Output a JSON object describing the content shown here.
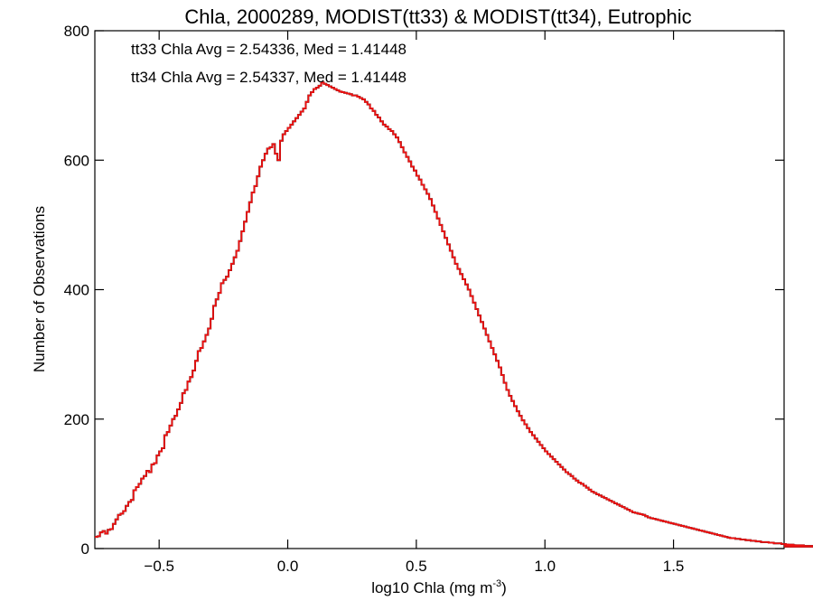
{
  "chart_data": {
    "type": "histogram",
    "title": "Chla, 2000289, MODIST(tt33) & MODIST(tt34), Eutrophic",
    "xlabel": "log10 Chla (mg m",
    "xlabel_sup": "-3",
    "xlabel_close": ")",
    "ylabel": "Number of Observations",
    "xlim": [
      -0.75,
      1.93
    ],
    "ylim": [
      0,
      800
    ],
    "xticks": [
      -0.5,
      0.0,
      0.5,
      1.0,
      1.5
    ],
    "xtick_labels": [
      "−0.5",
      "0.0",
      "0.5",
      "1.0",
      "1.5"
    ],
    "yticks": [
      0,
      200,
      400,
      600,
      800
    ],
    "ytick_labels": [
      "0",
      "200",
      "400",
      "600",
      "800"
    ],
    "bin_width": 0.01,
    "bins_start": -0.75,
    "annotations": [
      {
        "text": "tt33 Chla Avg = 2.54336, Med = 1.41448",
        "color": "#000000"
      },
      {
        "text": "tt34 Chla Avg = 2.54337, Med = 1.41448",
        "color": "#ee1111"
      }
    ],
    "series": [
      {
        "color": "#000000",
        "values": [
          18,
          19,
          25,
          27,
          23,
          29,
          30,
          38,
          45,
          52,
          54,
          58,
          66,
          72,
          75,
          90,
          95,
          100,
          108,
          112,
          120,
          118,
          130,
          132,
          144,
          150,
          155,
          175,
          180,
          190,
          200,
          205,
          215,
          225,
          240,
          245,
          258,
          265,
          275,
          290,
          305,
          310,
          320,
          330,
          340,
          355,
          375,
          385,
          395,
          410,
          415,
          420,
          430,
          440,
          450,
          460,
          475,
          490,
          505,
          520,
          535,
          550,
          560,
          575,
          590,
          600,
          610,
          618,
          620,
          625,
          610,
          600,
          630,
          640,
          645,
          650,
          655,
          660,
          665,
          670,
          675,
          680,
          690,
          700,
          705,
          710,
          712,
          715,
          720,
          718,
          716,
          714,
          712,
          710,
          708,
          706,
          705,
          704,
          703,
          702,
          700,
          700,
          698,
          696,
          694,
          690,
          686,
          680,
          676,
          670,
          666,
          660,
          655,
          652,
          648,
          645,
          640,
          635,
          628,
          620,
          612,
          605,
          598,
          590,
          584,
          576,
          570,
          562,
          555,
          548,
          540,
          530,
          520,
          510,
          500,
          490,
          480,
          470,
          460,
          450,
          440,
          432,
          424,
          416,
          408,
          400,
          390,
          380,
          370,
          360,
          350,
          340,
          330,
          320,
          310,
          300,
          290,
          280,
          268,
          256,
          245,
          236,
          228,
          220,
          212,
          205,
          198,
          192,
          186,
          180,
          175,
          170,
          165,
          160,
          155,
          150,
          146,
          142,
          138,
          134,
          130,
          126,
          122,
          118,
          115,
          112,
          108,
          105,
          102,
          100,
          97,
          94,
          91,
          88,
          86,
          84,
          82,
          80,
          78,
          76,
          74,
          72,
          70,
          68,
          66,
          64,
          62,
          60,
          58,
          56,
          55,
          54,
          53,
          52,
          50,
          48,
          47,
          46,
          45,
          44,
          43,
          42,
          41,
          40,
          39,
          38,
          37,
          36,
          35,
          34,
          33,
          32,
          31,
          30,
          29,
          28,
          27,
          26,
          25,
          24,
          23,
          22,
          21,
          20,
          19,
          18,
          17,
          16,
          16,
          15,
          15,
          14,
          14,
          13,
          13,
          12,
          12,
          11,
          11,
          10,
          10,
          10,
          9,
          9,
          8,
          8,
          8,
          7,
          7,
          7,
          6,
          6,
          6,
          5,
          5,
          5,
          5,
          4,
          4,
          4,
          4,
          4,
          4,
          4,
          3,
          3,
          3,
          3,
          3,
          3,
          3,
          3,
          3,
          3
        ]
      },
      {
        "color": "#ee1111",
        "values": [
          18,
          19,
          25,
          27,
          23,
          29,
          30,
          38,
          45,
          52,
          54,
          58,
          66,
          72,
          75,
          90,
          95,
          100,
          108,
          112,
          120,
          118,
          130,
          132,
          144,
          150,
          155,
          175,
          180,
          190,
          200,
          205,
          215,
          225,
          240,
          245,
          258,
          265,
          275,
          290,
          305,
          310,
          320,
          330,
          340,
          355,
          375,
          385,
          395,
          410,
          415,
          420,
          430,
          440,
          450,
          460,
          475,
          490,
          505,
          520,
          535,
          550,
          560,
          575,
          590,
          600,
          610,
          618,
          620,
          625,
          610,
          600,
          630,
          640,
          645,
          650,
          655,
          660,
          665,
          670,
          675,
          680,
          690,
          700,
          705,
          710,
          712,
          715,
          720,
          718,
          716,
          714,
          712,
          710,
          708,
          706,
          705,
          704,
          703,
          702,
          700,
          700,
          698,
          696,
          694,
          690,
          686,
          680,
          676,
          670,
          666,
          660,
          655,
          652,
          648,
          645,
          640,
          635,
          628,
          620,
          612,
          605,
          598,
          590,
          584,
          576,
          570,
          562,
          555,
          548,
          540,
          530,
          520,
          510,
          500,
          490,
          480,
          470,
          460,
          450,
          440,
          432,
          424,
          416,
          408,
          400,
          390,
          380,
          370,
          360,
          350,
          340,
          330,
          320,
          310,
          300,
          290,
          280,
          268,
          256,
          245,
          236,
          228,
          220,
          212,
          205,
          198,
          192,
          186,
          180,
          175,
          170,
          165,
          160,
          155,
          150,
          146,
          142,
          138,
          134,
          130,
          126,
          122,
          118,
          115,
          112,
          108,
          105,
          102,
          100,
          97,
          94,
          91,
          88,
          86,
          84,
          82,
          80,
          78,
          76,
          74,
          72,
          70,
          68,
          66,
          64,
          62,
          60,
          58,
          56,
          55,
          54,
          53,
          52,
          50,
          48,
          47,
          46,
          45,
          44,
          43,
          42,
          41,
          40,
          39,
          38,
          37,
          36,
          35,
          34,
          33,
          32,
          31,
          30,
          29,
          28,
          27,
          26,
          25,
          24,
          23,
          22,
          21,
          20,
          19,
          18,
          17,
          16,
          16,
          15,
          15,
          14,
          14,
          13,
          13,
          12,
          12,
          11,
          11,
          10,
          10,
          10,
          9,
          9,
          8,
          8,
          8,
          7,
          7,
          7,
          6,
          6,
          6,
          5,
          5,
          5,
          5,
          4,
          4,
          4,
          4,
          4,
          4,
          4,
          3,
          3,
          3,
          3,
          3,
          3,
          3,
          3,
          3,
          3
        ]
      }
    ]
  }
}
